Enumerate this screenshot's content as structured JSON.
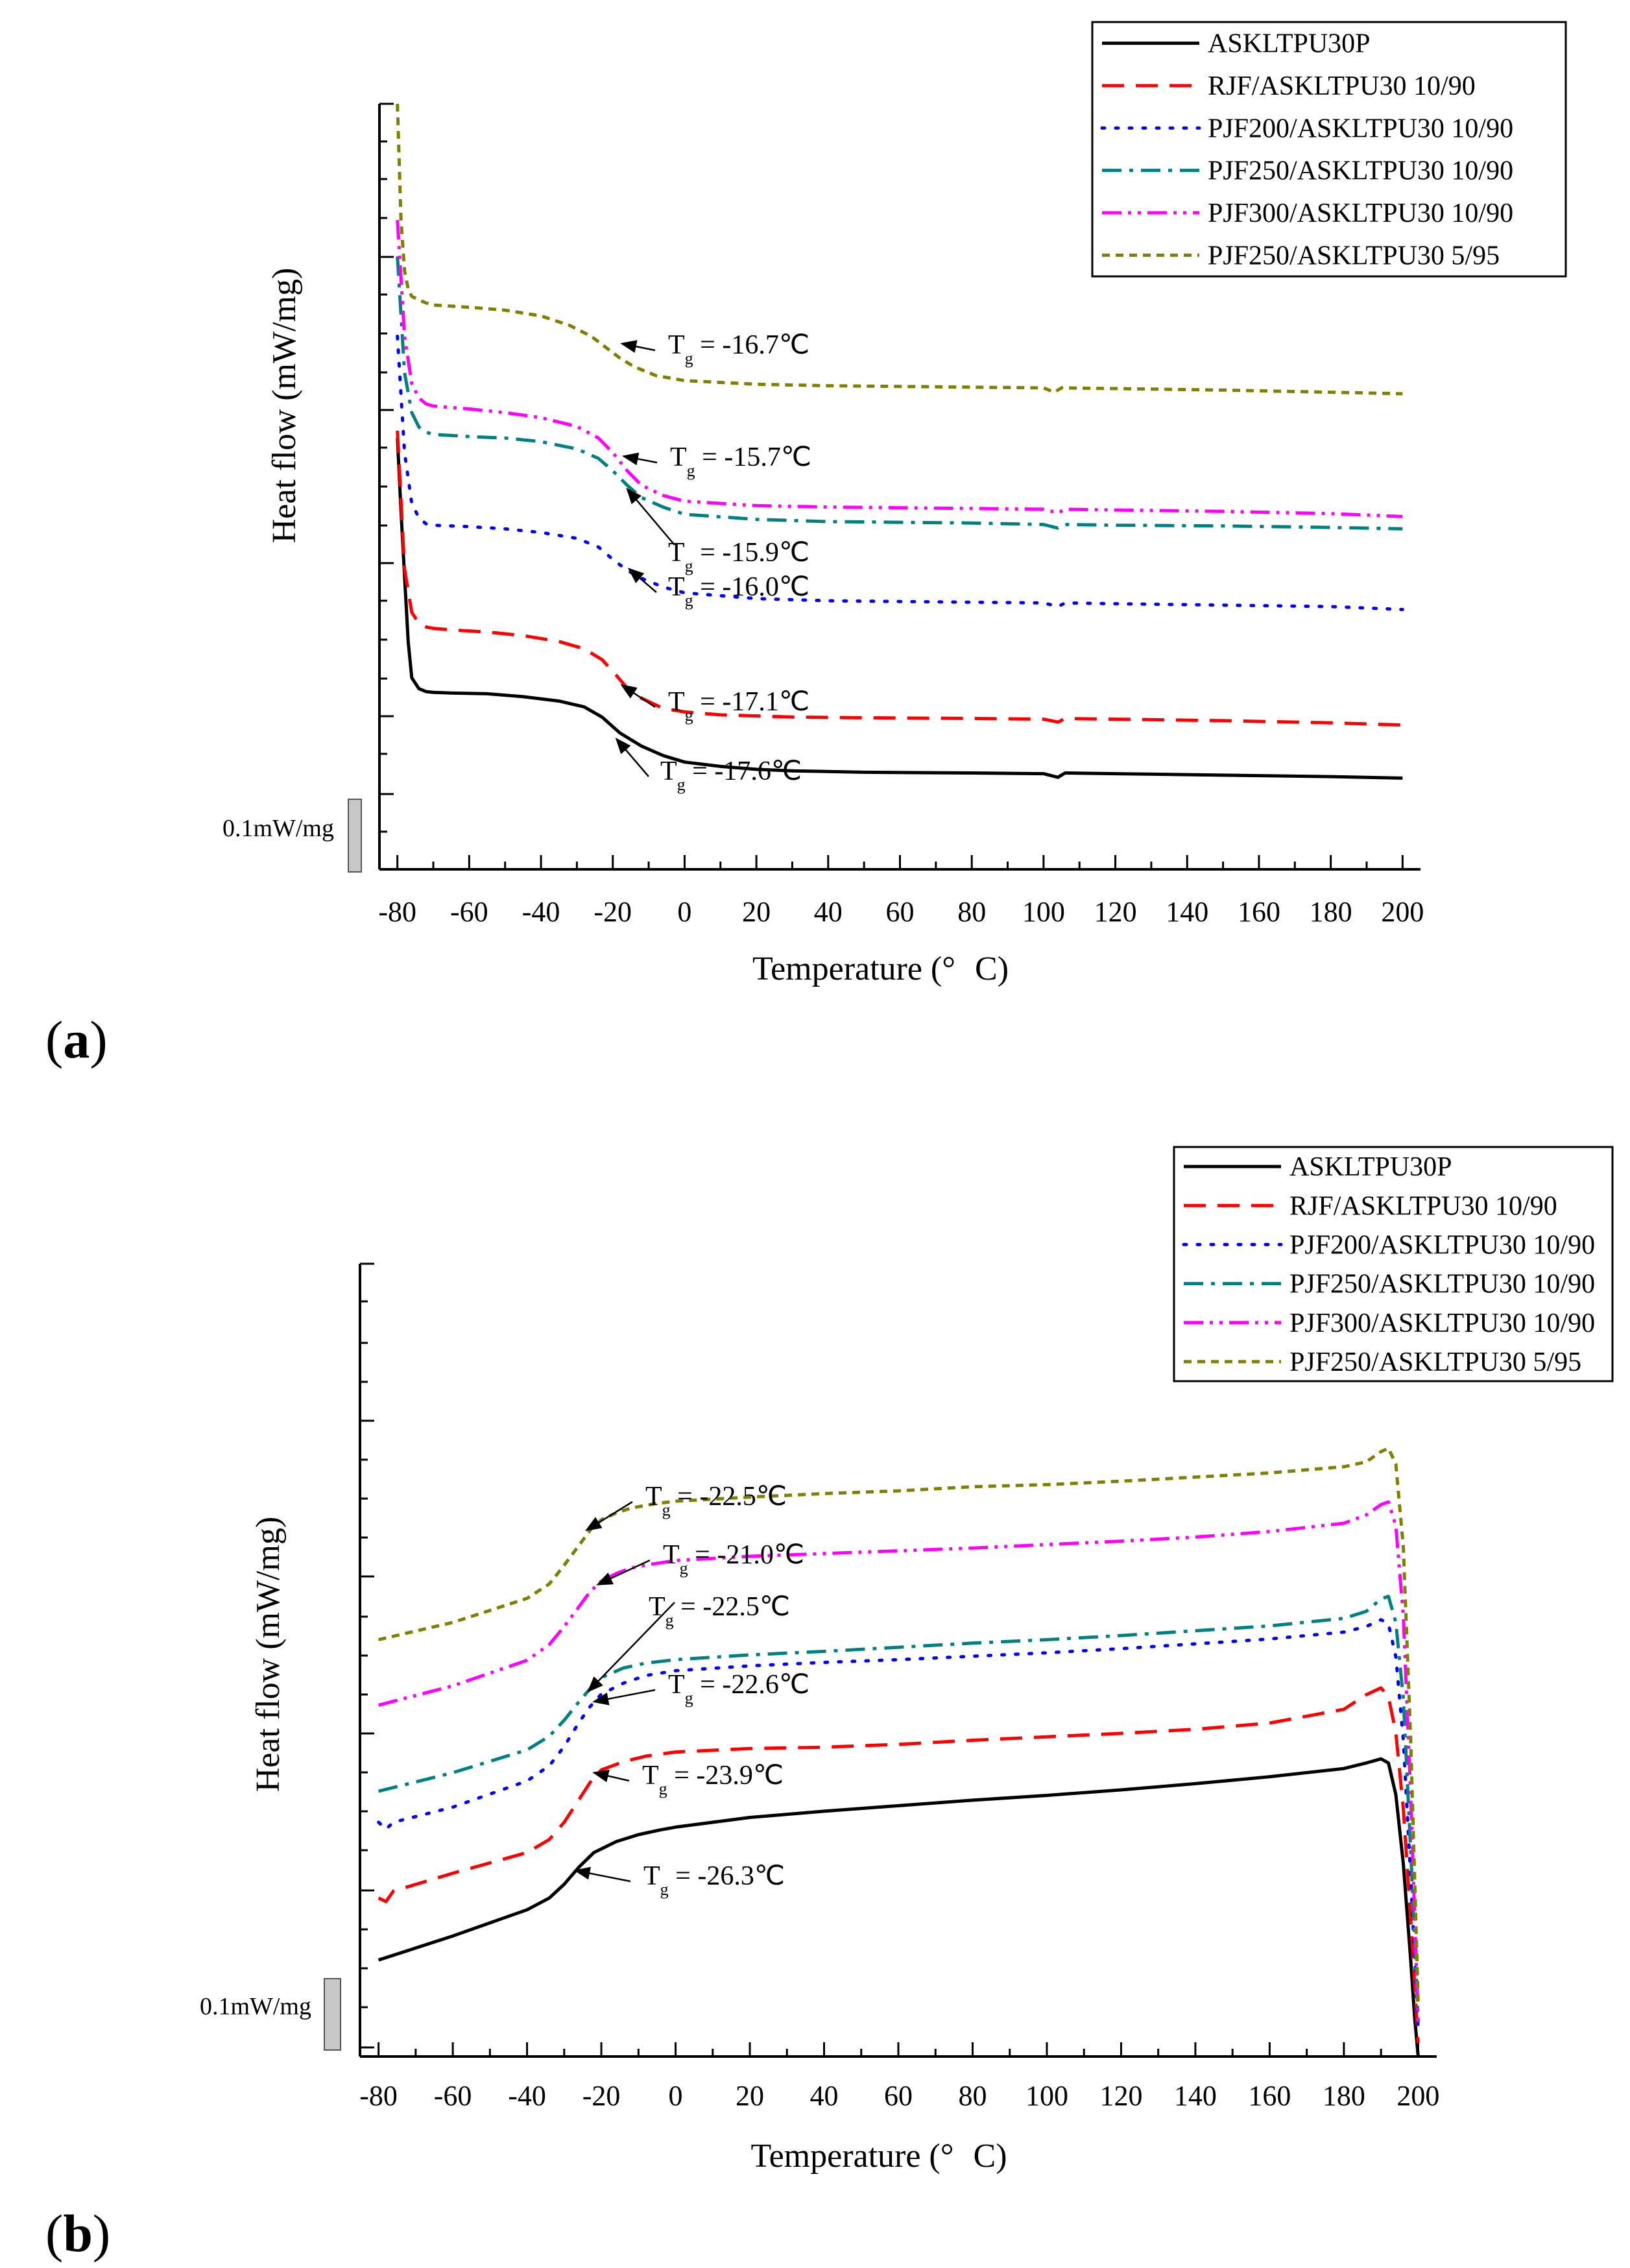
{
  "figure": {
    "panel_labels": [
      "(a)",
      "(b)"
    ]
  },
  "chart_data": [
    {
      "type": "line",
      "panel": "(a)",
      "xlabel": "Temperature (°C)",
      "xlabel_parts": [
        "Temperature (°",
        "C)"
      ],
      "ylabel": "Heat flow (mW/mg)",
      "xlim": [
        -85,
        205
      ],
      "ylim": [
        0,
        100
      ],
      "xticks": [
        -80,
        -60,
        -40,
        -20,
        0,
        20,
        40,
        60,
        80,
        100,
        120,
        140,
        160,
        180,
        200
      ],
      "scale_bar_label": "0.1mW/mg",
      "legend": {
        "placement": "top-right",
        "entries": [
          "ASKLTPU30P",
          "RJF/ASKLTPU30 10/90",
          "PJF200/ASKLTPU30 10/90",
          "PJF250/ASKLTPU30 10/90",
          "PJF300/ASKLTPU30 10/90",
          "PJF250/ASKLTPU30 5/95"
        ]
      },
      "series": [
        {
          "name": "ASKLTPU30P",
          "color": "#000000",
          "dash": "solid",
          "x": [
            -80,
            -79,
            -78,
            -77,
            -76,
            -74,
            -72,
            -70,
            -65,
            -55,
            -45,
            -35,
            -28,
            -23,
            -18,
            -12,
            -6,
            0,
            10,
            20,
            30,
            50,
            80,
            100,
            104,
            106,
            120,
            150,
            180,
            200
          ],
          "y": [
            54,
            44,
            35,
            26,
            21,
            19.5,
            19.1,
            19.0,
            18.9,
            18.8,
            18.4,
            17.8,
            17.0,
            15.6,
            13.4,
            11.6,
            10.3,
            9.4,
            8.8,
            8.4,
            8.2,
            8.0,
            7.9,
            7.8,
            7.3,
            7.9,
            7.8,
            7.6,
            7.4,
            7.2
          ]
        },
        {
          "name": "RJF/ASKLTPU30 10/90",
          "color": "#ff0000",
          "dash": "dash",
          "x": [
            -80,
            -78,
            -76,
            -74,
            -72,
            -70,
            -65,
            -55,
            -45,
            -35,
            -28,
            -23,
            -20,
            -16,
            -12,
            -6,
            0,
            10,
            30,
            50,
            80,
            100,
            104,
            106,
            120,
            150,
            180,
            200
          ],
          "y": [
            55,
            36,
            30,
            28.5,
            28.0,
            27.8,
            27.6,
            27.3,
            26.8,
            26.0,
            25.0,
            23.5,
            21.9,
            19.6,
            18.2,
            16.8,
            16.3,
            15.9,
            15.6,
            15.5,
            15.4,
            15.3,
            14.9,
            15.4,
            15.3,
            15.1,
            14.8,
            14.5
          ]
        },
        {
          "name": "PJF200/ASKLTPU30 10/90",
          "color": "#0000ff",
          "dash": "dot",
          "x": [
            -80,
            -78,
            -76,
            -74,
            -72,
            -70,
            -60,
            -50,
            -40,
            -30,
            -24,
            -20,
            -16,
            -12,
            -6,
            0,
            20,
            40,
            60,
            80,
            100,
            104,
            106,
            120,
            150,
            180,
            200
          ],
          "y": [
            68,
            52,
            45,
            43,
            42.2,
            42.0,
            41.8,
            41.5,
            41.0,
            40.2,
            39.0,
            37.3,
            35.8,
            34.7,
            33.5,
            32.7,
            31.9,
            31.6,
            31.5,
            31.4,
            31.3,
            30.8,
            31.3,
            31.2,
            31.0,
            30.8,
            30.4
          ]
        },
        {
          "name": "PJF250/ASKLTPU30 10/90",
          "color": "#008080",
          "dash": "dashdot",
          "x": [
            -80,
            -78,
            -76,
            -74,
            -72,
            -70,
            -60,
            -50,
            -40,
            -30,
            -24,
            -20,
            -16,
            -12,
            -6,
            0,
            20,
            40,
            60,
            80,
            100,
            104,
            106,
            120,
            150,
            180,
            200
          ],
          "y": [
            79,
            63,
            57.5,
            55.5,
            54.8,
            54.5,
            54.2,
            54.0,
            53.5,
            52.5,
            51.2,
            49.5,
            47.5,
            45.8,
            44.5,
            43.5,
            42.8,
            42.5,
            42.4,
            42.3,
            42.1,
            41.6,
            42.1,
            42.0,
            41.9,
            41.7,
            41.5
          ]
        },
        {
          "name": "PJF300/ASKLTPU30 10/90",
          "color": "#ff00ff",
          "dash": "dashdotdot",
          "x": [
            -80,
            -78,
            -76,
            -74,
            -72,
            -70,
            -60,
            -50,
            -40,
            -30,
            -24,
            -20,
            -16,
            -12,
            -6,
            0,
            20,
            40,
            60,
            80,
            100,
            104,
            106,
            120,
            150,
            180,
            200
          ],
          "y": [
            84,
            68,
            61.5,
            59.5,
            58.7,
            58.4,
            58.0,
            57.5,
            56.8,
            55.6,
            54.0,
            52.0,
            49.5,
            47.5,
            46.1,
            45.3,
            44.7,
            44.5,
            44.4,
            44.3,
            44.2,
            43.7,
            44.2,
            44.1,
            43.9,
            43.6,
            43.2
          ]
        },
        {
          "name": "PJF250/ASKLTPU30 5/95",
          "color": "#808000",
          "dash": "shortdash",
          "x": [
            -80,
            -79,
            -78,
            -77,
            -76,
            -74,
            -72,
            -70,
            -60,
            -50,
            -40,
            -32,
            -26,
            -22,
            -18,
            -14,
            -8,
            0,
            20,
            40,
            60,
            80,
            100,
            103,
            105,
            120,
            150,
            180,
            200
          ],
          "y": [
            100,
            84,
            77,
            74.5,
            73.5,
            73.0,
            72.6,
            72.3,
            72.0,
            71.6,
            70.8,
            69.5,
            68.0,
            66.5,
            65.0,
            63.8,
            62.6,
            61.9,
            61.4,
            61.2,
            61.1,
            61.0,
            60.9,
            60.3,
            60.9,
            60.8,
            60.6,
            60.3,
            60.1
          ]
        }
      ],
      "annotations": [
        {
          "text": "Tg = -16.7℃",
          "tg": "-16.7℃",
          "arrow_to": [
            -17.5,
            67
          ]
        },
        {
          "text": "Tg = -15.7℃",
          "tg": "-15.7℃",
          "arrow_to": [
            -17,
            51.5
          ]
        },
        {
          "text": "Tg = -15.9℃",
          "tg": "-15.9℃",
          "arrow_to": [
            -16,
            47
          ]
        },
        {
          "text": "Tg = -16.0℃",
          "tg": "-16.0℃",
          "arrow_to": [
            -15.5,
            36
          ]
        },
        {
          "text": "Tg = -17.1℃",
          "tg": "-17.1℃",
          "arrow_to": [
            -17.5,
            20
          ]
        },
        {
          "text": "Tg = -17.6℃",
          "tg": "-17.6℃",
          "arrow_to": [
            -19,
            12.6
          ]
        }
      ]
    },
    {
      "type": "line",
      "panel": "(b)",
      "xlabel": "Temperature (°C)",
      "xlabel_parts": [
        "Temperature (°",
        "C)"
      ],
      "ylabel": "Heat flow (mW/mg)",
      "xlim": [
        -85,
        205
      ],
      "ylim": [
        0,
        100
      ],
      "xticks": [
        -80,
        -60,
        -40,
        -20,
        0,
        20,
        40,
        60,
        80,
        100,
        120,
        140,
        160,
        180,
        200
      ],
      "scale_bar_label": "0.1mW/mg",
      "legend": {
        "placement": "top-right",
        "entries": [
          "ASKLTPU30P",
          "RJF/ASKLTPU30 10/90",
          "PJF200/ASKLTPU30 10/90",
          "PJF250/ASKLTPU30 10/90",
          "PJF300/ASKLTPU30 10/90",
          "PJF250/ASKLTPU30 5/95"
        ]
      },
      "series": [
        {
          "name": "ASKLTPU30P",
          "color": "#000000",
          "dash": "solid",
          "x": [
            -80,
            -60,
            -40,
            -34,
            -30,
            -26,
            -22,
            -16,
            -10,
            -4,
            0,
            20,
            40,
            60,
            80,
            100,
            120,
            140,
            160,
            180,
            186,
            190,
            192,
            194,
            196,
            198,
            199,
            200
          ],
          "y": [
            14,
            17.5,
            21.3,
            23,
            25,
            27.5,
            29.6,
            31.2,
            32.2,
            32.9,
            33.3,
            34.7,
            35.6,
            36.4,
            37.2,
            37.9,
            38.7,
            39.6,
            40.6,
            41.8,
            42.6,
            43.2,
            42.6,
            38,
            28,
            14,
            6,
            0
          ]
        },
        {
          "name": "RJF/ASKLTPU30 10/90",
          "color": "#ff0000",
          "dash": "dash",
          "x": [
            -80,
            -78,
            -76,
            -60,
            -40,
            -34,
            -30,
            -26,
            -23,
            -20,
            -14,
            -8,
            0,
            20,
            40,
            60,
            80,
            100,
            120,
            140,
            160,
            180,
            186,
            190,
            192,
            194,
            196,
            198,
            200
          ],
          "y": [
            23,
            22.5,
            24,
            26.6,
            29.6,
            31.5,
            34.0,
            37.3,
            39.8,
            41.6,
            42.8,
            43.6,
            44.2,
            44.7,
            44.9,
            45.3,
            45.9,
            46.4,
            46.9,
            47.5,
            48.4,
            50.4,
            52.5,
            53.5,
            52.2,
            47,
            36,
            20,
            2
          ]
        },
        {
          "name": "PJF200/ASKLTPU30 10/90",
          "color": "#0000ff",
          "dash": "dot",
          "x": [
            -80,
            -78,
            -76,
            -60,
            -40,
            -34,
            -30,
            -26,
            -23,
            -20,
            -14,
            -8,
            0,
            20,
            40,
            60,
            80,
            100,
            120,
            140,
            160,
            180,
            186,
            190,
            192,
            194,
            196,
            198,
            200
          ],
          "y": [
            34,
            33,
            34,
            36.2,
            40.0,
            42.2,
            45.0,
            48.5,
            50.8,
            52.6,
            54.2,
            55.3,
            56.0,
            56.7,
            57.2,
            57.6,
            58.1,
            58.6,
            59.2,
            59.9,
            60.6,
            61.6,
            62.4,
            63.4,
            62.8,
            58,
            46,
            26,
            4
          ]
        },
        {
          "name": "PJF250/ASKLTPU30 10/90",
          "color": "#008080",
          "dash": "dashdot",
          "x": [
            -80,
            -60,
            -40,
            -34,
            -30,
            -26,
            -23,
            -20,
            -14,
            -8,
            0,
            20,
            40,
            60,
            80,
            100,
            120,
            140,
            160,
            180,
            186,
            190,
            192,
            194,
            196,
            198,
            200
          ],
          "y": [
            38.5,
            41.2,
            44.5,
            46.5,
            48.8,
            51.5,
            53.4,
            55.0,
            56.4,
            57.1,
            57.6,
            58.3,
            58.8,
            59.4,
            60.0,
            60.5,
            61.1,
            61.8,
            62.5,
            63.6,
            64.6,
            66.4,
            66.8,
            63,
            52,
            30,
            5
          ]
        },
        {
          "name": "PJF300/ASKLTPU30 10/90",
          "color": "#ff00ff",
          "dash": "dashdotdot",
          "x": [
            -80,
            -60,
            -40,
            -34,
            -30,
            -26,
            -23,
            -20,
            -16,
            -12,
            -6,
            0,
            20,
            40,
            60,
            80,
            100,
            120,
            140,
            160,
            180,
            186,
            190,
            192,
            194,
            196,
            198,
            200
          ],
          "y": [
            51,
            53.8,
            57.5,
            59.8,
            62.4,
            65.3,
            67.5,
            69.0,
            70.1,
            70.9,
            71.5,
            72.0,
            72.6,
            73.0,
            73.4,
            73.8,
            74.3,
            74.8,
            75.4,
            76.2,
            77.4,
            78.6,
            80.1,
            80.5,
            77,
            64,
            38,
            5
          ]
        },
        {
          "name": "PJF250/ASKLTPU30 5/95",
          "color": "#808000",
          "dash": "shortdash",
          "x": [
            -80,
            -60,
            -40,
            -34,
            -30,
            -26,
            -23,
            -20,
            -16,
            -12,
            -6,
            0,
            20,
            40,
            60,
            80,
            100,
            120,
            140,
            160,
            180,
            186,
            190,
            192,
            194,
            196,
            198,
            200
          ],
          "y": [
            60.5,
            63.0,
            66.5,
            68.6,
            71.3,
            74.2,
            76.4,
            77.9,
            78.9,
            79.6,
            80.2,
            80.6,
            81.2,
            81.7,
            82.1,
            82.7,
            83.0,
            83.5,
            84.1,
            84.7,
            85.6,
            86.3,
            87.8,
            88.3,
            86,
            74,
            46,
            8
          ]
        }
      ],
      "annotations": [
        {
          "text": "Tg = -22.5℃",
          "tg": "-22.5℃",
          "arrow_to": [
            -24,
            76.4
          ]
        },
        {
          "text": "Tg = -21.0℃",
          "tg": "-21.0℃",
          "arrow_to": [
            -21,
            68.5
          ]
        },
        {
          "text": "Tg = -22.5℃",
          "tg": "-22.5℃",
          "arrow_to": [
            -23.5,
            53.0
          ]
        },
        {
          "text": "Tg = -22.6℃",
          "tg": "-22.6℃",
          "arrow_to": [
            -22,
            51.5
          ]
        },
        {
          "text": "Tg = -23.9℃",
          "tg": "-23.9℃",
          "arrow_to": [
            -22,
            41.2
          ]
        },
        {
          "text": "Tg = -26.3℃",
          "tg": "-26.3℃",
          "arrow_to": [
            -27,
            27
          ]
        }
      ]
    }
  ]
}
